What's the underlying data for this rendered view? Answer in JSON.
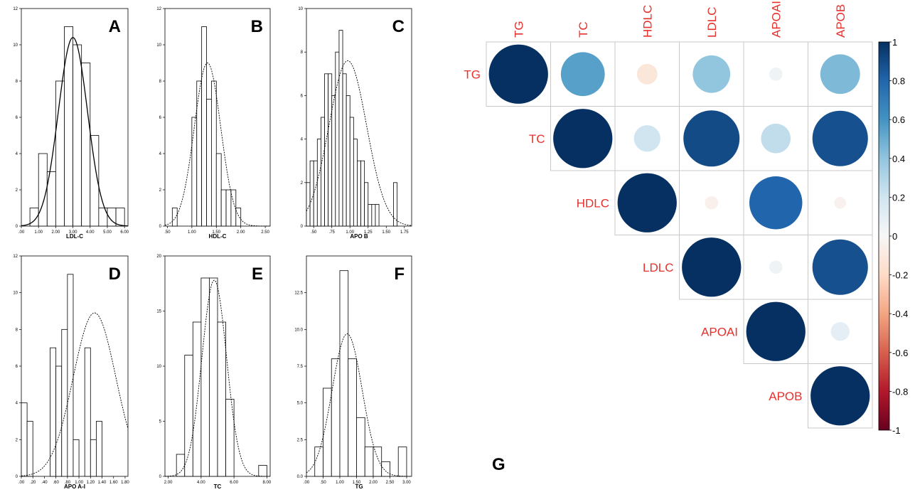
{
  "chart_data": [
    {
      "type": "bar",
      "panel": "A",
      "xlabel": "LDL-C",
      "x_ticks": [
        ".00",
        "1.00",
        "2.00",
        "3.00",
        "4.00",
        "5.00",
        "6.00"
      ],
      "xlim": [
        0,
        6.2
      ],
      "y_ticks": [
        "0",
        "2",
        "4",
        "6",
        "8",
        "10",
        "12"
      ],
      "ylim": [
        0,
        12
      ],
      "bin_edges": [
        0.5,
        1.0,
        1.5,
        2.0,
        2.5,
        3.0,
        3.5,
        4.0,
        4.5,
        5.0,
        5.5,
        6.0
      ],
      "counts": [
        1,
        4,
        3,
        8,
        11,
        10,
        9,
        5,
        1,
        1,
        1
      ],
      "fit": {
        "mean": 3.0,
        "peak": 10.4,
        "sd": 0.85,
        "dashed": false
      }
    },
    {
      "type": "bar",
      "panel": "B",
      "xlabel": "HDL-C",
      "x_ticks": [
        ".50",
        "1.00",
        "1.50",
        "2.00",
        "2.50"
      ],
      "xlim": [
        0.45,
        2.6
      ],
      "y_ticks": [
        "0",
        "2",
        "4",
        "6",
        "8",
        "10",
        "12"
      ],
      "ylim": [
        0,
        12
      ],
      "bin_edges": [
        0.6,
        0.7,
        0.8,
        0.9,
        1.0,
        1.1,
        1.2,
        1.3,
        1.4,
        1.5,
        1.6,
        1.7,
        1.8,
        1.9,
        2.0,
        2.1
      ],
      "counts": [
        1,
        0,
        0,
        0,
        6,
        8,
        11,
        7,
        8,
        4,
        2,
        2,
        2,
        1,
        0
      ],
      "fit": {
        "mean": 1.32,
        "peak": 9.0,
        "sd": 0.27,
        "dashed": true
      }
    },
    {
      "type": "bar",
      "panel": "C",
      "xlabel": "APO B",
      "x_ticks": [
        ".50",
        ".75",
        "1.00",
        "1.25",
        "1.50",
        "1.75"
      ],
      "xlim": [
        0.4,
        1.85
      ],
      "y_ticks": [
        "0",
        "2",
        "4",
        "6",
        "8",
        "10"
      ],
      "ylim": [
        0,
        10
      ],
      "bin_edges": [
        0.4,
        0.45,
        0.5,
        0.55,
        0.6,
        0.65,
        0.7,
        0.75,
        0.8,
        0.85,
        0.9,
        0.95,
        1.0,
        1.05,
        1.1,
        1.15,
        1.2,
        1.25,
        1.3,
        1.35,
        1.4,
        1.45,
        1.5,
        1.55,
        1.6,
        1.65,
        1.7
      ],
      "counts": [
        2,
        3,
        3,
        4,
        5,
        7,
        7,
        6,
        8,
        9,
        7,
        6,
        5,
        4,
        3,
        3,
        2,
        1,
        1,
        1,
        0,
        0,
        0,
        0,
        2,
        0
      ],
      "fit": {
        "mean": 0.97,
        "peak": 7.6,
        "sd": 0.26,
        "dashed": true
      }
    },
    {
      "type": "bar",
      "panel": "D",
      "xlabel": "APO A-I",
      "x_ticks": [
        ".00",
        ".20",
        ".40",
        ".60",
        ".80",
        "1.00",
        "1.20",
        "1.40",
        "1.60",
        "1.80"
      ],
      "xlim": [
        0,
        1.85
      ],
      "y_ticks": [
        "0",
        "2",
        "4",
        "6",
        "8",
        "10",
        "12"
      ],
      "ylim": [
        0,
        12
      ],
      "bin_edges": [
        0.0,
        0.1,
        0.2,
        0.3,
        0.4,
        0.5,
        0.6,
        0.7,
        0.8,
        0.9,
        1.0,
        1.1,
        1.2,
        1.3,
        1.4,
        1.5,
        1.6,
        1.7,
        1.8
      ],
      "counts": [
        4,
        3,
        0,
        0,
        0,
        7,
        6,
        8,
        11,
        2,
        0,
        7,
        2,
        3,
        0,
        0,
        0,
        0
      ],
      "fit": {
        "mean": 1.27,
        "peak": 8.9,
        "sd": 0.37,
        "dashed": true
      }
    },
    {
      "type": "bar",
      "panel": "E",
      "xlabel": "TC",
      "x_ticks": [
        "2.00",
        "4.00",
        "6.00",
        "8.00"
      ],
      "xlim": [
        1.8,
        8.2
      ],
      "y_ticks": [
        "0",
        "5",
        "10",
        "15",
        "20"
      ],
      "ylim": [
        0,
        20
      ],
      "bin_edges": [
        2.5,
        3.0,
        3.5,
        4.0,
        4.5,
        5.0,
        5.5,
        6.0,
        6.5,
        7.0,
        7.5,
        8.0
      ],
      "counts": [
        2,
        11,
        14,
        18,
        18,
        14,
        7,
        0,
        0,
        0,
        1
      ],
      "fit": {
        "mean": 4.8,
        "peak": 17.8,
        "sd": 0.75,
        "dashed": true
      }
    },
    {
      "type": "bar",
      "panel": "F",
      "xlabel": "TG",
      "x_ticks": [
        ".00",
        ".50",
        "1.00",
        "1.50",
        "2.00",
        "2.50",
        "3.00"
      ],
      "xlim": [
        0,
        3.15
      ],
      "y_ticks": [
        "0.0",
        "2.5",
        "5.0",
        "7.5",
        "10.0",
        "12.5"
      ],
      "ylim": [
        0,
        15
      ],
      "bin_edges": [
        0.25,
        0.5,
        0.75,
        1.0,
        1.25,
        1.5,
        1.75,
        2.0,
        2.25,
        2.5,
        2.75,
        3.0
      ],
      "counts": [
        2,
        6,
        8,
        14,
        8,
        4,
        2,
        2,
        1,
        0,
        2
      ],
      "fit": {
        "mean": 1.22,
        "peak": 9.7,
        "sd": 0.45,
        "dashed": true
      }
    },
    {
      "type": "heatmap",
      "panel": "G",
      "variables": [
        "TG",
        "TC",
        "HDLC",
        "LDLC",
        "APOAI",
        "APOB"
      ],
      "matrix": [
        [
          1.0,
          0.55,
          -0.12,
          0.4,
          0.05,
          0.45
        ],
        [
          0.55,
          1.0,
          0.2,
          0.9,
          0.25,
          0.88
        ],
        [
          -0.12,
          0.2,
          1.0,
          -0.05,
          0.8,
          -0.04
        ],
        [
          0.4,
          0.9,
          -0.05,
          1.0,
          0.05,
          0.88
        ],
        [
          0.05,
          0.25,
          0.8,
          0.05,
          1.0,
          0.1
        ],
        [
          0.45,
          0.88,
          -0.04,
          0.88,
          0.1,
          1.0
        ]
      ],
      "colorbar_ticks": [
        "1",
        "0.8",
        "0.6",
        "0.4",
        "0.2",
        "0",
        "-0.2",
        "-0.4",
        "-0.6",
        "-0.8",
        "-1"
      ],
      "colorbar_range": [
        -1,
        1
      ],
      "colors": {
        "positive": "#053061",
        "neutral": "#f7f7f7",
        "negative": "#67001f",
        "label": "#e8302c"
      }
    }
  ],
  "figure_label_g": "G"
}
